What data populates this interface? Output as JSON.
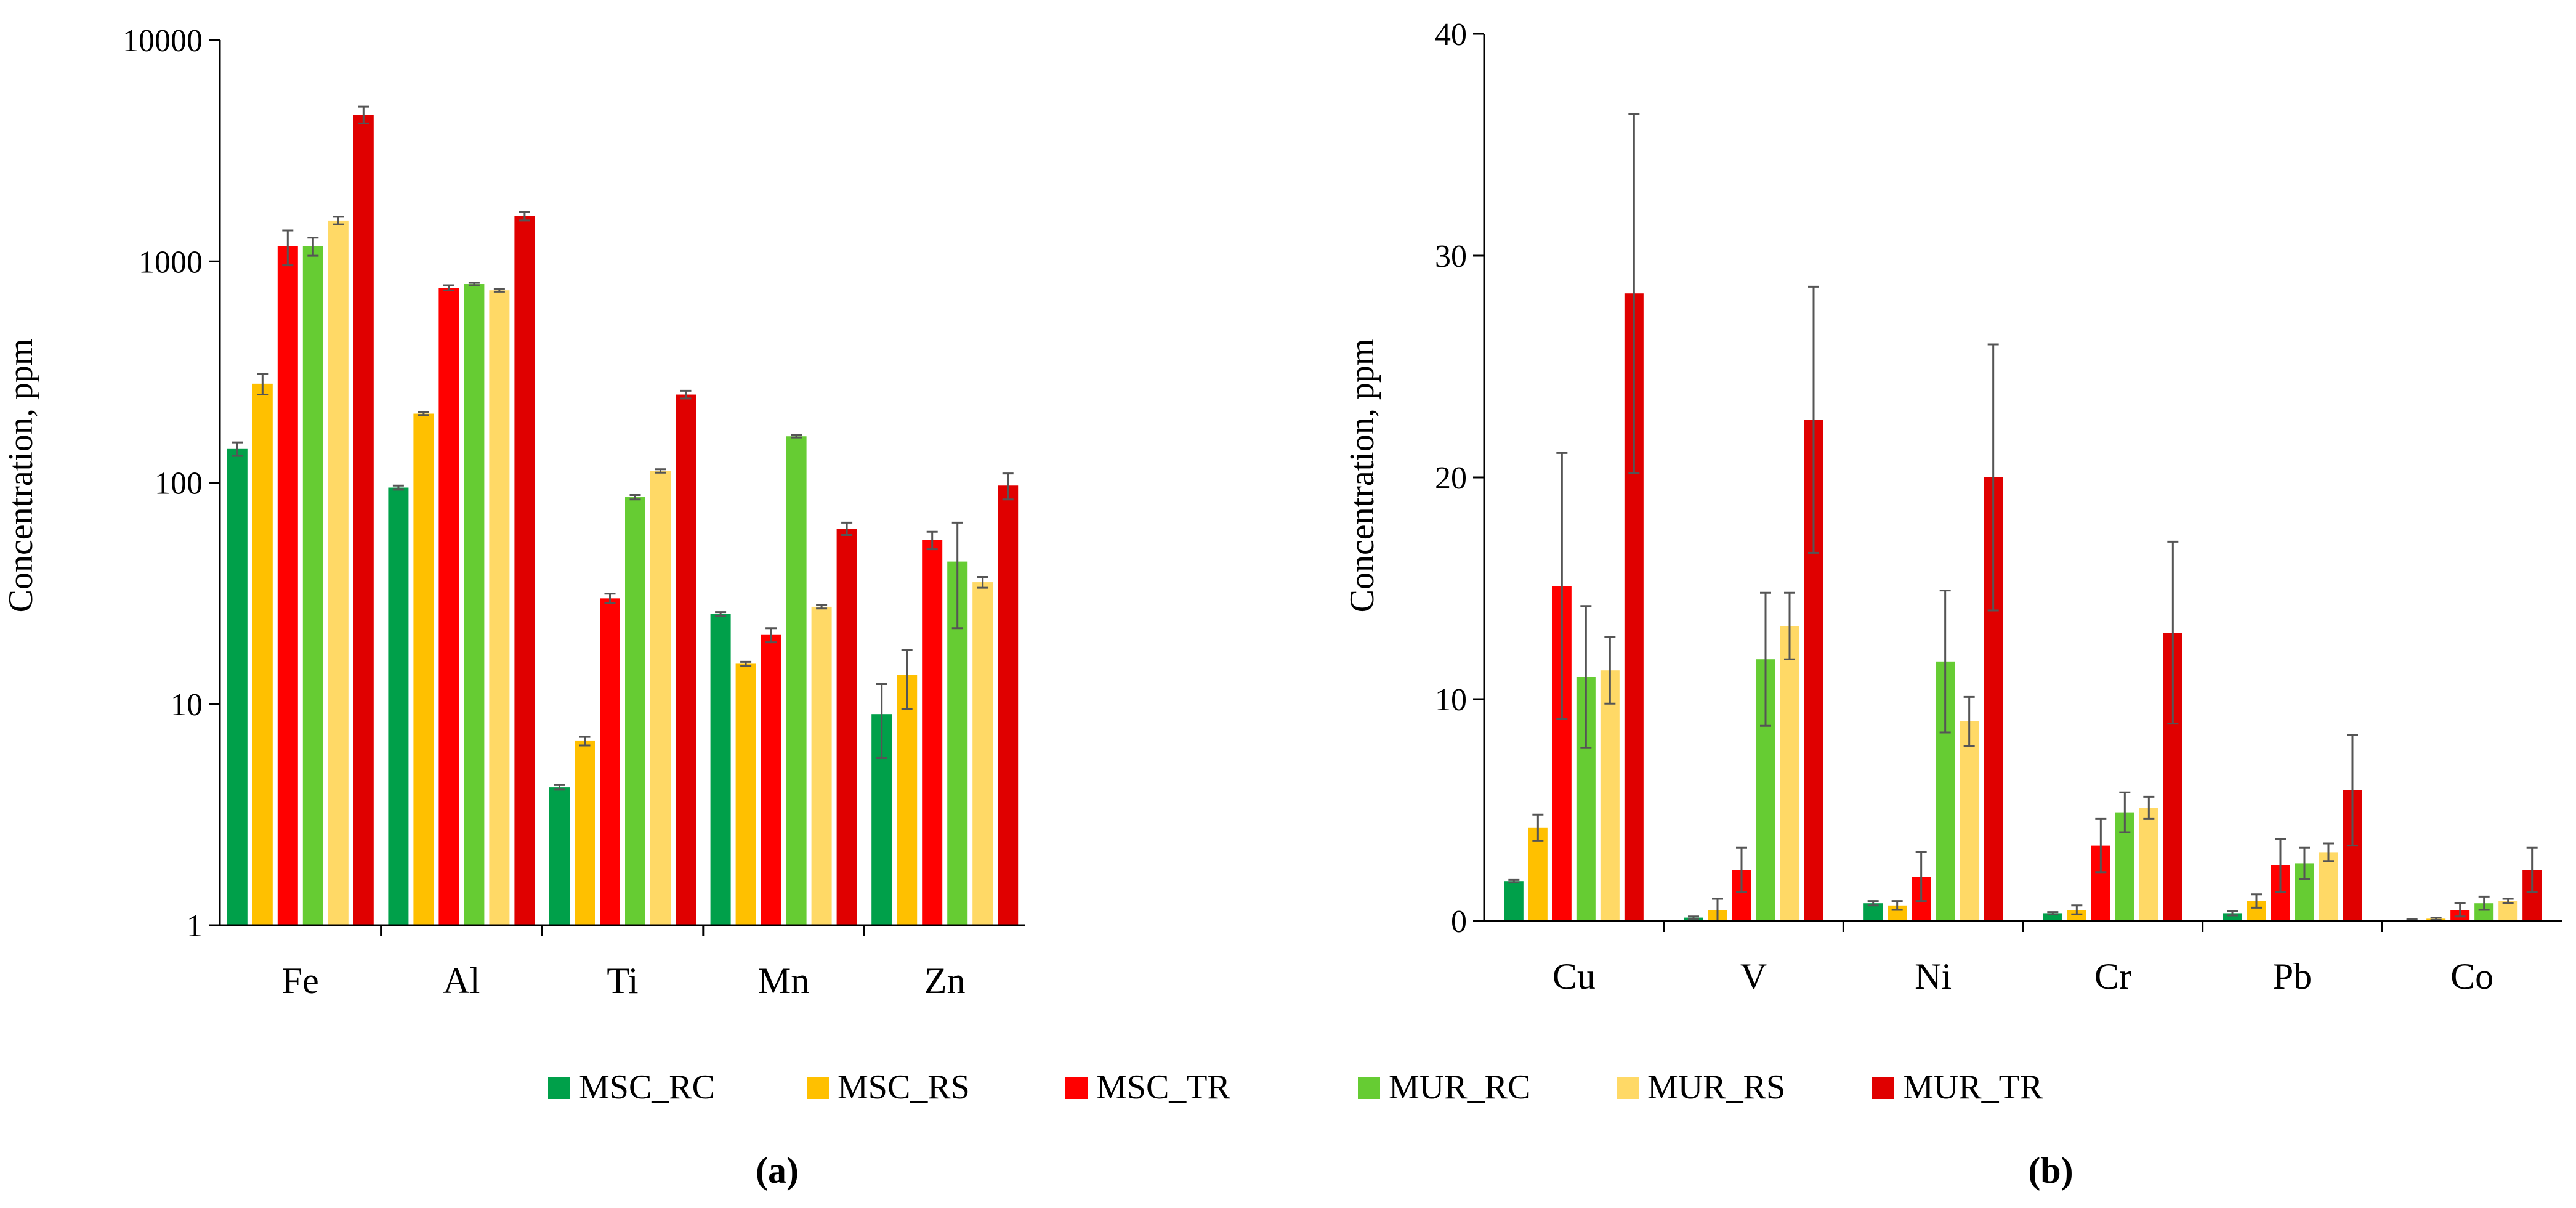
{
  "chart_data": [
    {
      "id": "a",
      "type": "bar",
      "panel_label": "(a)",
      "title": "",
      "xlabel": "",
      "ylabel": "Concentration, ppm",
      "yscale": "log",
      "ylim": [
        1,
        10000
      ],
      "yticks": [
        1,
        10,
        100,
        1000,
        10000
      ],
      "ytick_labels": [
        "1",
        "10",
        "100",
        "1000",
        "10000"
      ],
      "grid": false,
      "categories": [
        "Fe",
        "Al",
        "Ti",
        "Mn",
        "Zn"
      ],
      "series": [
        {
          "name": "MSC_RC",
          "values": [
            142,
            95,
            4.2,
            25.5,
            9
          ],
          "errors": [
            10,
            2,
            0.1,
            0.5,
            3.3
          ]
        },
        {
          "name": "MSC_RS",
          "values": [
            280,
            205,
            6.8,
            15.2,
            13.5
          ],
          "errors": [
            30,
            3,
            0.3,
            0.3,
            4
          ]
        },
        {
          "name": "MSC_TR",
          "values": [
            1170,
            760,
            30,
            20.5,
            55
          ],
          "errors": [
            210,
            20,
            1.5,
            1.5,
            5
          ]
        },
        {
          "name": "MUR_RC",
          "values": [
            1170,
            790,
            86,
            162,
            44
          ],
          "errors": [
            110,
            10,
            2,
            2,
            22
          ]
        },
        {
          "name": "MUR_RS",
          "values": [
            1530,
            740,
            113,
            27.5,
            35.5
          ],
          "errors": [
            60,
            10,
            2,
            0.5,
            2
          ]
        },
        {
          "name": "MUR_TR",
          "values": [
            4600,
            1600,
            250,
            62,
            97
          ],
          "errors": [
            400,
            70,
            10,
            4,
            13
          ]
        }
      ]
    },
    {
      "id": "b",
      "type": "bar",
      "panel_label": "(b)",
      "title": "",
      "xlabel": "",
      "ylabel": "Concentration, ppm",
      "yscale": "linear",
      "ylim": [
        0,
        40
      ],
      "yticks": [
        0,
        10,
        20,
        30,
        40
      ],
      "ytick_labels": [
        "0",
        "10",
        "20",
        "30",
        "40"
      ],
      "grid": false,
      "categories": [
        "Cu",
        "V",
        "Ni",
        "Cr",
        "Pb",
        "Co"
      ],
      "series": [
        {
          "name": "MSC_RC",
          "values": [
            1.8,
            0.15,
            0.8,
            0.35,
            0.35,
            0.05
          ],
          "errors": [
            0.05,
            0.05,
            0.1,
            0.05,
            0.1,
            0.02
          ]
        },
        {
          "name": "MSC_RS",
          "values": [
            4.2,
            0.5,
            0.7,
            0.5,
            0.9,
            0.1
          ],
          "errors": [
            0.6,
            0.5,
            0.2,
            0.2,
            0.3,
            0.05
          ]
        },
        {
          "name": "MSC_TR",
          "values": [
            15.1,
            2.3,
            2.0,
            3.4,
            2.5,
            0.5
          ],
          "errors": [
            6,
            1.0,
            1.1,
            1.2,
            1.2,
            0.3
          ]
        },
        {
          "name": "MUR_RC",
          "values": [
            11.0,
            11.8,
            11.7,
            4.9,
            2.6,
            0.8
          ],
          "errors": [
            3.2,
            3.0,
            3.2,
            0.9,
            0.7,
            0.3
          ]
        },
        {
          "name": "MUR_RS",
          "values": [
            11.3,
            13.3,
            9.0,
            5.1,
            3.1,
            0.9
          ],
          "errors": [
            1.5,
            1.5,
            1.1,
            0.5,
            0.4,
            0.1
          ]
        },
        {
          "name": "MUR_TR",
          "values": [
            28.3,
            22.6,
            20.0,
            13.0,
            5.9,
            2.3
          ],
          "errors": [
            8.1,
            6.0,
            6.0,
            4.1,
            2.5,
            1.0
          ]
        }
      ]
    }
  ],
  "legend": {
    "placement": "bottom-center",
    "entries": [
      {
        "name": "MSC_RC",
        "color": "#00a04a"
      },
      {
        "name": "MSC_RS",
        "color": "#ffc000"
      },
      {
        "name": "MSC_TR",
        "color": "#ff0000"
      },
      {
        "name": "MUR_RC",
        "color": "#66cc33"
      },
      {
        "name": "MUR_RS",
        "color": "#ffd966"
      },
      {
        "name": "MUR_TR",
        "color": "#e00000"
      }
    ]
  },
  "colors": {
    "MSC_RC": "#00a04a",
    "MSC_RS": "#ffc000",
    "MSC_TR": "#ff0000",
    "MUR_RC": "#66cc33",
    "MUR_RS": "#ffd966",
    "MUR_TR": "#e00000",
    "axis": "#000000",
    "error_bar": "#555555"
  }
}
